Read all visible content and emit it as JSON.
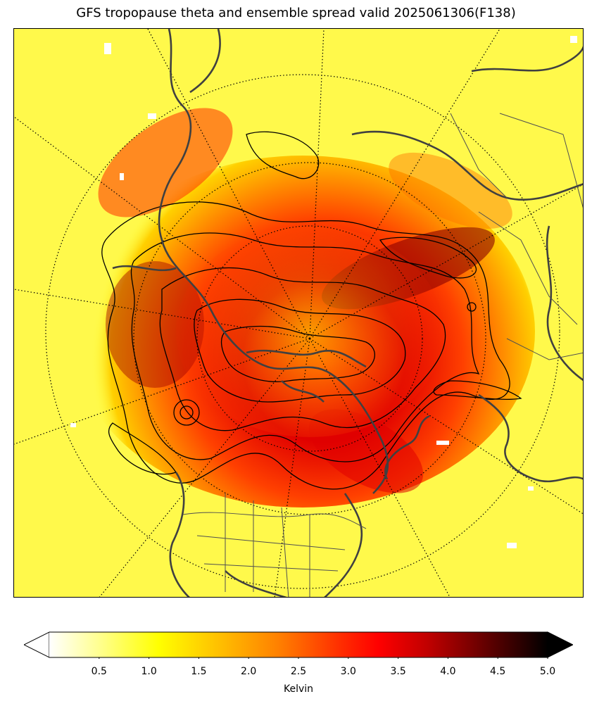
{
  "title": "GFS tropopause theta and ensemble spread valid 2025061306(F138)",
  "colorbar": {
    "label": "Kelvin",
    "min": 0,
    "max": 5.0,
    "extend": "both",
    "ticks": [
      {
        "value": 0.5,
        "label": "0.5"
      },
      {
        "value": 1.0,
        "label": "1.0"
      },
      {
        "value": 1.5,
        "label": "1.5"
      },
      {
        "value": 2.0,
        "label": "2.0"
      },
      {
        "value": 2.5,
        "label": "2.5"
      },
      {
        "value": 3.0,
        "label": "3.0"
      },
      {
        "value": 3.5,
        "label": "3.5"
      },
      {
        "value": 4.0,
        "label": "4.0"
      },
      {
        "value": 4.5,
        "label": "4.5"
      },
      {
        "value": 5.0,
        "label": "5.0"
      }
    ],
    "colormap": "hot_r",
    "colors": [
      "#ffffff",
      "#ffff80",
      "#ffff00",
      "#ffc000",
      "#ff8000",
      "#ff4000",
      "#ff0000",
      "#c00000",
      "#800000",
      "#400000",
      "#000000"
    ]
  },
  "map": {
    "projection": "north-polar-stereographic",
    "region": "Northern Hemisphere",
    "background_color": "#ffff40",
    "contour_color": "#000000",
    "coastline_color": "#404040"
  }
}
